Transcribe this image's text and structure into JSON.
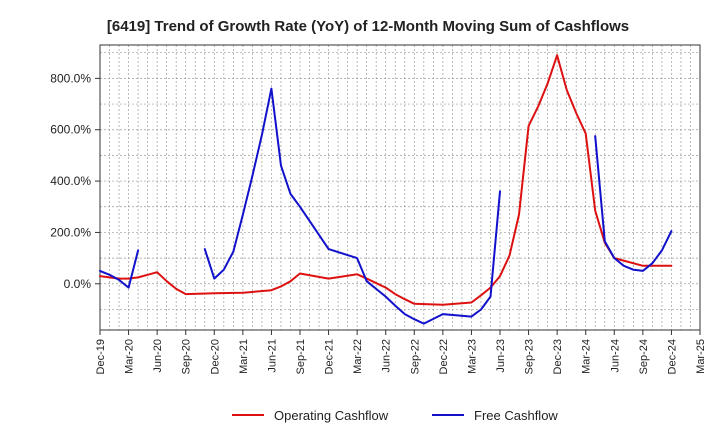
{
  "chart_data": {
    "type": "line",
    "title": "[6419]  Trend of Growth Rate (YoY) of 12-Month Moving Sum of Cashflows",
    "xlabel": "",
    "ylabel": "",
    "x_start": "2019-12",
    "x_end": "2025-03",
    "tick_labels": [
      "Dec-19",
      "Mar-20",
      "Jun-20",
      "Sep-20",
      "Dec-20",
      "Mar-21",
      "Jun-21",
      "Sep-21",
      "Dec-21",
      "Mar-22",
      "Jun-22",
      "Sep-22",
      "Dec-22",
      "Mar-23",
      "Jun-23",
      "Sep-23",
      "Dec-23",
      "Mar-24",
      "Jun-24",
      "Sep-24",
      "Dec-24",
      "Mar-25"
    ],
    "y_ticks": [
      "0.0%",
      "200.0%",
      "400.0%",
      "600.0%",
      "800.0%"
    ],
    "y_tick_values": [
      0,
      200,
      400,
      600,
      800
    ],
    "ylim": [
      -180,
      930
    ],
    "grid": true,
    "legend_position": "bottom",
    "series": [
      {
        "name": "Operating Cashflow",
        "color": "#dd1111",
        "x": [
          "2019-12",
          "2020-01",
          "2020-02",
          "2020-03",
          "2020-04",
          "2020-05",
          "2020-06",
          "2020-07",
          "2020-08",
          "2020-09",
          "2020-12",
          "2021-03",
          "2021-06",
          "2021-07",
          "2021-08",
          "2021-09",
          "2021-12",
          "2022-03",
          "2022-04",
          "2022-06",
          "2022-07",
          "2022-08",
          "2022-09",
          "2022-12",
          "2023-03",
          "2023-04",
          "2023-05",
          "2023-06",
          "2023-07",
          "2023-08",
          "2023-09",
          "2023-10",
          "2023-11",
          "2023-12",
          "2024-01",
          "2024-02",
          "2024-03",
          "2024-04",
          "2024-05",
          "2024-06",
          "2024-09",
          "2024-12"
        ],
        "values": [
          30,
          25,
          20,
          20,
          25,
          35,
          45,
          10,
          -20,
          -40,
          -37,
          -35,
          -25,
          -10,
          10,
          40,
          20,
          37,
          20,
          -15,
          -40,
          -60,
          -78,
          -82,
          -73,
          -45,
          -15,
          30,
          110,
          270,
          615,
          690,
          780,
          890,
          755,
          665,
          585,
          285,
          160,
          100,
          70,
          70
        ]
      },
      {
        "name": "Free Cashflow",
        "color": "#1111cc",
        "segments": [
          {
            "x": [
              "2019-12",
              "2020-01",
              "2020-02",
              "2020-03",
              "2020-04"
            ],
            "values": [
              50,
              35,
              15,
              -15,
              130
            ]
          },
          {
            "x": [
              "2020-11",
              "2020-12",
              "2021-01",
              "2021-02",
              "2021-03",
              "2021-04",
              "2021-05",
              "2021-06",
              "2021-07",
              "2021-08",
              "2021-09",
              "2021-12",
              "2022-03",
              "2022-04",
              "2022-06",
              "2022-07",
              "2022-08",
              "2022-09",
              "2022-10",
              "2022-12",
              "2023-03",
              "2023-04",
              "2023-05",
              "2023-06"
            ],
            "values": [
              135,
              20,
              55,
              125,
              270,
              420,
              580,
              760,
              460,
              350,
              300,
              135,
              100,
              10,
              -50,
              -85,
              -118,
              -138,
              -155,
              -118,
              -128,
              -100,
              -50,
              360
            ]
          },
          {
            "x": [
              "2024-04",
              "2024-05",
              "2024-06",
              "2024-07",
              "2024-08",
              "2024-09",
              "2024-10",
              "2024-11",
              "2024-12"
            ],
            "values": [
              575,
              165,
              100,
              70,
              55,
              50,
              80,
              130,
              205
            ]
          }
        ]
      }
    ]
  }
}
